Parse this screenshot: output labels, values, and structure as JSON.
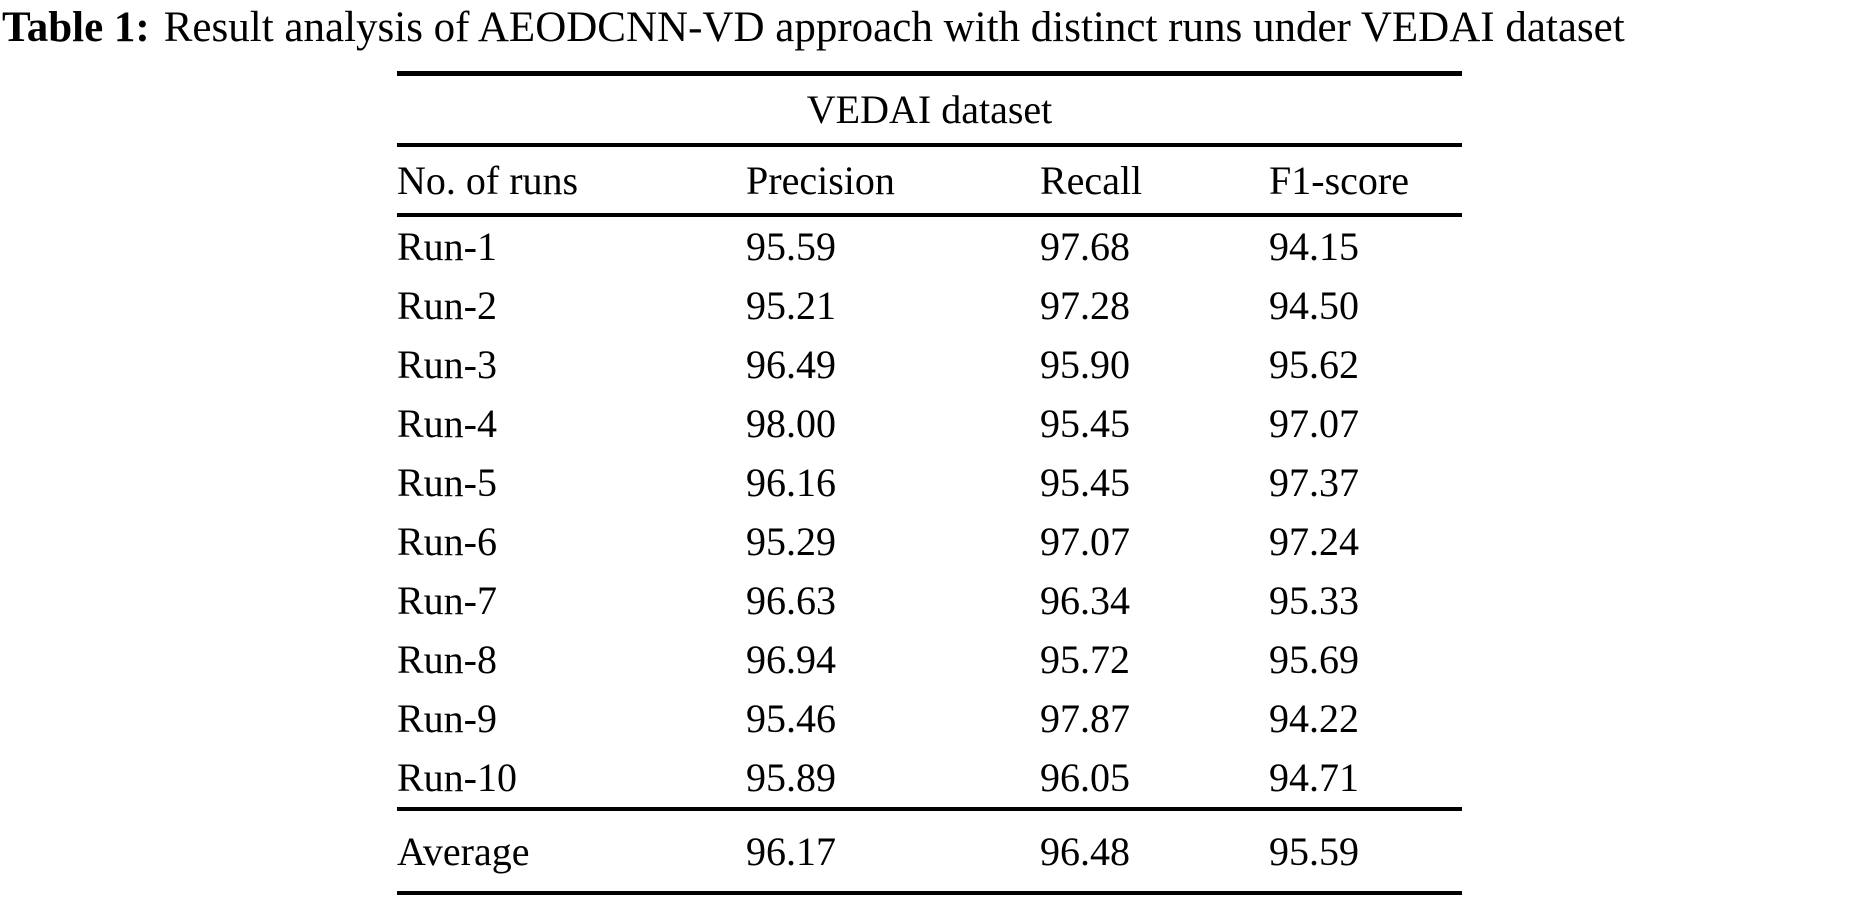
{
  "caption": {
    "label": "Table 1:",
    "text": "Result analysis of AEODCNN-VD approach with distinct runs under VEDAI dataset"
  },
  "table": {
    "group_header": "VEDAI dataset",
    "columns": [
      "No. of runs",
      "Precision",
      "Recall",
      "F1-score"
    ],
    "rows": [
      {
        "run": "Run-1",
        "precision": "95.59",
        "recall": "97.68",
        "f1": "94.15"
      },
      {
        "run": "Run-2",
        "precision": "95.21",
        "recall": "97.28",
        "f1": "94.50"
      },
      {
        "run": "Run-3",
        "precision": "96.49",
        "recall": "95.90",
        "f1": "95.62"
      },
      {
        "run": "Run-4",
        "precision": "98.00",
        "recall": "95.45",
        "f1": "97.07"
      },
      {
        "run": "Run-5",
        "precision": "96.16",
        "recall": "95.45",
        "f1": "97.37"
      },
      {
        "run": "Run-6",
        "precision": "95.29",
        "recall": "97.07",
        "f1": "97.24"
      },
      {
        "run": "Run-7",
        "precision": "96.63",
        "recall": "96.34",
        "f1": "95.33"
      },
      {
        "run": "Run-8",
        "precision": "96.94",
        "recall": "95.72",
        "f1": "95.69"
      },
      {
        "run": "Run-9",
        "precision": "95.46",
        "recall": "97.87",
        "f1": "94.22"
      },
      {
        "run": "Run-10",
        "precision": "95.89",
        "recall": "96.05",
        "f1": "94.71"
      }
    ],
    "footer": {
      "label": "Average",
      "precision": "96.17",
      "recall": "96.48",
      "f1": "95.59"
    }
  },
  "colors": {
    "text": "#000000",
    "rule": "#000000",
    "background": "#ffffff"
  }
}
